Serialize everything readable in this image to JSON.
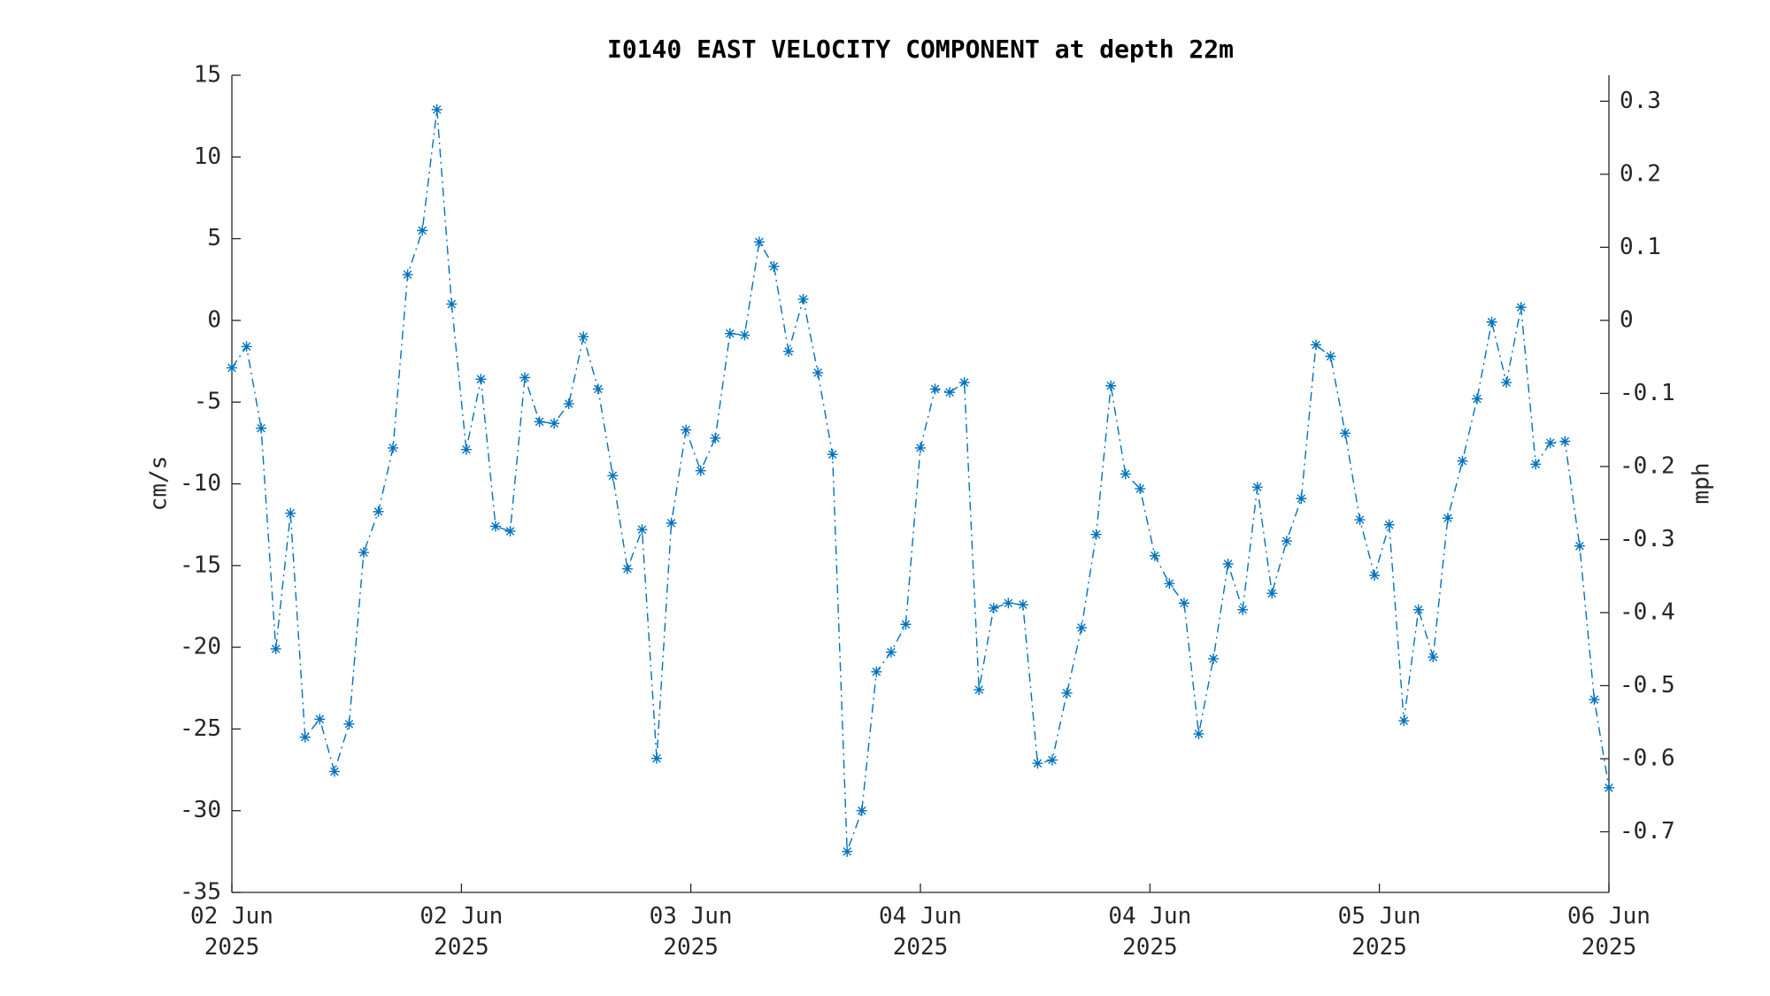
{
  "chart_data": {
    "type": "line",
    "title": "I0140 EAST VELOCITY COMPONENT at depth 22m",
    "y_label": "cm/s",
    "y2_label": "mph",
    "color": "#0072bd",
    "line_style": "dashdot",
    "marker": "*",
    "x": [
      0,
      1,
      2,
      3,
      4,
      5,
      6,
      7,
      8,
      9,
      10,
      11,
      12,
      13,
      14,
      15,
      16,
      17,
      18,
      19,
      20,
      21,
      22,
      23,
      24,
      25,
      26,
      27,
      28,
      29,
      30,
      31,
      32,
      33,
      34,
      35,
      36,
      37,
      38,
      39,
      40,
      41,
      42,
      43,
      44,
      45,
      46,
      47,
      48,
      49,
      50,
      51,
      52,
      53,
      54,
      55,
      56,
      57,
      58,
      59,
      60,
      61,
      62,
      63,
      64,
      65,
      66,
      67,
      68,
      69,
      70,
      71,
      72,
      73,
      74,
      75,
      76,
      77,
      78,
      79,
      80,
      81,
      82,
      83,
      84,
      85,
      86,
      87,
      88,
      89,
      90,
      91,
      92,
      93,
      94
    ],
    "values": [
      -2.9,
      -1.6,
      -6.6,
      -20.1,
      -11.8,
      -25.5,
      -24.4,
      -27.6,
      -24.7,
      -14.2,
      -11.7,
      -7.8,
      2.8,
      5.5,
      12.9,
      1.0,
      -7.9,
      -3.6,
      -12.6,
      -12.9,
      -3.5,
      -6.2,
      -6.3,
      -5.1,
      -1.0,
      -4.2,
      -9.5,
      -15.2,
      -12.8,
      -26.8,
      -12.4,
      -6.7,
      -9.2,
      -7.2,
      -0.8,
      -0.9,
      4.8,
      3.3,
      -1.9,
      1.3,
      -3.2,
      -8.2,
      -32.5,
      -30.0,
      -21.5,
      -20.3,
      -18.6,
      -7.8,
      -4.2,
      -4.4,
      -3.8,
      -22.6,
      -17.6,
      -17.3,
      -17.4,
      -27.1,
      -26.9,
      -22.8,
      -18.8,
      -13.1,
      -4.0,
      -9.4,
      -10.3,
      -14.4,
      -16.1,
      -17.3,
      -25.3,
      -20.7,
      -14.9,
      -17.7,
      -10.2,
      -16.7,
      -13.5,
      -10.9,
      -1.5,
      -2.2,
      -6.9,
      -12.2,
      -15.6,
      -12.5,
      -24.5,
      -17.7,
      -20.6,
      -12.1,
      -8.6,
      -4.8,
      -0.1,
      -3.8,
      0.8,
      -8.8,
      -7.5,
      -7.4,
      -13.8,
      -23.2,
      -28.6
    ],
    "xlim": [
      0,
      94
    ],
    "xticks": [
      {
        "value": 0,
        "label": "02 Jun\n2025"
      },
      {
        "value": 15.67,
        "label": "02 Jun\n2025"
      },
      {
        "value": 31.33,
        "label": "03 Jun\n2025"
      },
      {
        "value": 47,
        "label": "04 Jun\n2025"
      },
      {
        "value": 62.67,
        "label": "04 Jun\n2025"
      },
      {
        "value": 78.33,
        "label": "05 Jun\n2025"
      },
      {
        "value": 94,
        "label": "06 Jun\n2025"
      }
    ],
    "ylim": [
      -35,
      15
    ],
    "yticks": [
      -35,
      -30,
      -25,
      -20,
      -15,
      -10,
      -5,
      0,
      5,
      10,
      15
    ],
    "y2lim": [
      -0.783,
      0.3355
    ],
    "y2ticks": [
      -0.7,
      -0.6,
      -0.5,
      -0.4,
      -0.3,
      -0.2,
      -0.1,
      0,
      0.1,
      0.2,
      0.3
    ]
  }
}
